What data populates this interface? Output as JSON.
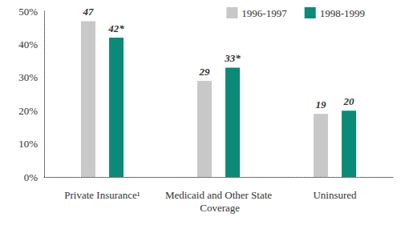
{
  "chart_data": {
    "type": "bar",
    "categories": [
      "Private Insurance¹",
      "Medicaid and Other State Coverage",
      "Uninsured"
    ],
    "series": [
      {
        "name": "1996-1997",
        "color": "#c8c8c8",
        "values": [
          47,
          29,
          19
        ],
        "value_labels": [
          "47",
          "29",
          "19"
        ]
      },
      {
        "name": "1998-1999",
        "color": "#0b8a77",
        "values": [
          42,
          33,
          20
        ],
        "value_labels": [
          "42*",
          "33*",
          "20"
        ]
      }
    ],
    "ylim": [
      0,
      50
    ],
    "yticks": [
      {
        "value": 0,
        "label": "0%"
      },
      {
        "value": 10,
        "label": "10%"
      },
      {
        "value": 20,
        "label": "20%"
      },
      {
        "value": 30,
        "label": "30%"
      },
      {
        "value": 40,
        "label": "40%"
      },
      {
        "value": 50,
        "label": "50%"
      }
    ],
    "grid": false,
    "legend": "top-right",
    "data_labels": true
  }
}
